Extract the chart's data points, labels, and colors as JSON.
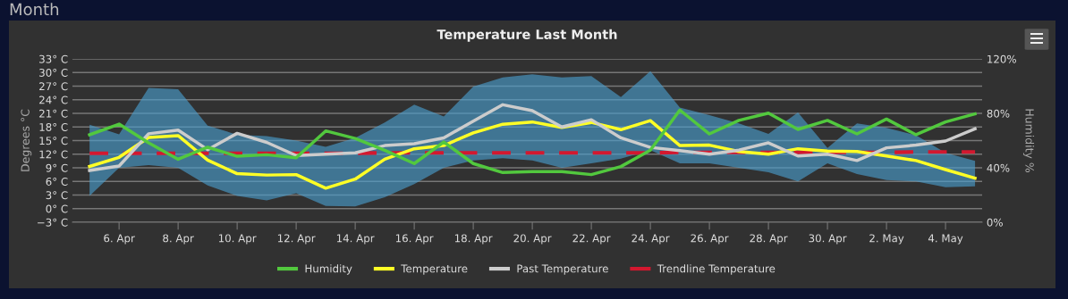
{
  "chart_data": {
    "type": "line",
    "title": "Temperature Last Month",
    "ylabel": "Degrees °C",
    "y2label": "Humidity %",
    "annotations": [
      "Month"
    ],
    "categories": [
      null,
      "6. Apr",
      null,
      "8. Apr",
      null,
      "10. Apr",
      null,
      "12. Apr",
      null,
      "14. Apr",
      null,
      "16. Apr",
      null,
      "18. Apr",
      null,
      "20. Apr",
      null,
      "22. Apr",
      null,
      "24. Apr",
      null,
      "26. Apr",
      null,
      "28. Apr",
      null,
      "30. Apr",
      null,
      "2. May",
      null,
      "4. May",
      null
    ],
    "ylim": [
      -3,
      33
    ],
    "yticks": [
      {
        "value": -3,
        "label": "−3° C"
      },
      {
        "value": 0,
        "label": "0° C"
      },
      {
        "value": 3,
        "label": "3° C"
      },
      {
        "value": 6,
        "label": "6° C"
      },
      {
        "value": 9,
        "label": "9° C"
      },
      {
        "value": 12,
        "label": "12° C"
      },
      {
        "value": 15,
        "label": "15° C"
      },
      {
        "value": 18,
        "label": "18° C"
      },
      {
        "value": 21,
        "label": "21° C"
      },
      {
        "value": 24,
        "label": "24° C"
      },
      {
        "value": 27,
        "label": "27° C"
      },
      {
        "value": 30,
        "label": "30° C"
      },
      {
        "value": 33,
        "label": "33° C"
      }
    ],
    "y2lim": [
      0,
      120
    ],
    "y2ticks": [
      {
        "value": 0,
        "label": "0%"
      },
      {
        "value": 40,
        "label": "40%"
      },
      {
        "value": 80,
        "label": "80%"
      },
      {
        "value": 120,
        "label": "120%"
      }
    ],
    "grid": "y",
    "legend": "bottom",
    "marker": "none",
    "series": [
      {
        "name": "Humidity",
        "color": "#52c83e",
        "axis": "y2",
        "values": [
          64.3,
          72.1,
          58.4,
          46.3,
          55.1,
          48.5,
          49.6,
          47.4,
          67.1,
          61.6,
          52.9,
          43.1,
          59.0,
          43.1,
          36.5,
          37.2,
          37.2,
          35,
          40.9,
          52.9,
          82.4,
          64.9,
          74.8,
          80.2,
          68.2,
          74.8,
          64.9,
          75.8,
          64.3,
          73.7,
          79.6
        ]
      },
      {
        "name": "Temperature",
        "color": "#ffff26",
        "values": [
          9.3,
          11.3,
          15.7,
          16.1,
          10.7,
          7.7,
          7.4,
          7.5,
          4.5,
          6.5,
          10.9,
          13.2,
          13.9,
          16.7,
          18.6,
          19.1,
          17.9,
          19.0,
          17.4,
          19.4,
          13.9,
          14.0,
          12.6,
          12.0,
          13.2,
          12.7,
          12.6,
          11.6,
          10.6,
          8.6,
          6.7
        ],
        "lower": [
          2.8,
          9,
          9.6,
          9,
          5.1,
          2.8,
          1.8,
          3.4,
          0.6,
          0.5,
          2.5,
          5.4,
          9,
          10.6,
          11.1,
          10.6,
          9,
          10,
          11,
          12.9,
          10,
          10,
          9,
          8,
          6,
          10,
          7.6,
          6.3,
          6,
          4.7,
          4.9
        ],
        "upper": [
          18.5,
          16.4,
          26.6,
          26.3,
          18.3,
          16.3,
          16,
          15,
          13.6,
          15.6,
          19.0,
          22.9,
          20.3,
          26.9,
          28.9,
          29.6,
          28.9,
          29.2,
          24.6,
          30.3,
          22.3,
          20.6,
          18.8,
          16.5,
          21.2,
          13.4,
          18.8,
          17.8,
          16.2,
          12.3,
          10.5
        ]
      },
      {
        "name": "Past Temperature",
        "color": "#cccccc",
        "values": [
          8.4,
          9.4,
          16.5,
          17.3,
          13.0,
          16.6,
          14.6,
          11.7,
          12.0,
          12.3,
          13.9,
          14.3,
          15.6,
          19.3,
          22.9,
          21.6,
          18.0,
          19.6,
          15.6,
          13.5,
          12.8,
          12,
          12.9,
          14.5,
          11.6,
          12.0,
          10.6,
          13.4,
          14.0,
          14.9,
          17.6
        ]
      },
      {
        "name": "Trendline Temperature",
        "color": "#d3182f",
        "line_style": "dashed",
        "values": [
          12.2,
          12.2,
          12.2,
          12.2,
          12.2,
          12.2,
          12.2,
          12.2,
          12.2,
          12.2,
          12.3,
          12.3,
          12.3,
          12.3,
          12.3,
          12.3,
          12.3,
          12.3,
          12.3,
          12.3,
          12.4,
          12.4,
          12.4,
          12.4,
          12.4,
          12.4,
          12.4,
          12.4,
          12.5,
          12.5,
          12.5
        ]
      }
    ]
  }
}
